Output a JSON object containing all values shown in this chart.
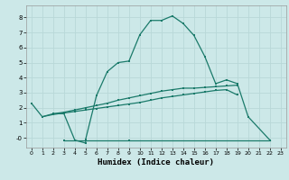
{
  "xlabel": "Humidex (Indice chaleur)",
  "background_color": "#cce8e8",
  "grid_color": "#b8d8d8",
  "line_color": "#1a7a6a",
  "xlim": [
    -0.5,
    23.5
  ],
  "ylim": [
    -0.65,
    8.8
  ],
  "xticks": [
    0,
    1,
    2,
    3,
    4,
    5,
    6,
    7,
    8,
    9,
    10,
    11,
    12,
    13,
    14,
    15,
    16,
    17,
    18,
    19,
    20,
    21,
    22,
    23
  ],
  "yticks": [
    0,
    1,
    2,
    3,
    4,
    5,
    6,
    7,
    8
  ],
  "ytick_labels": [
    "-0",
    "1",
    "2",
    "3",
    "4",
    "5",
    "6",
    "7",
    "8"
  ],
  "lines": [
    {
      "x": [
        0,
        1,
        2,
        3,
        4,
        5,
        5,
        6,
        7,
        8,
        9,
        10,
        11,
        12,
        13,
        14,
        15,
        16,
        17,
        18,
        19,
        20,
        22
      ],
      "y": [
        2.3,
        1.4,
        1.6,
        1.6,
        -0.15,
        -0.35,
        -0.1,
        2.8,
        4.4,
        5.0,
        5.1,
        6.85,
        7.8,
        7.8,
        8.1,
        7.6,
        6.8,
        5.4,
        3.6,
        3.85,
        3.6,
        1.4,
        -0.15
      ]
    },
    {
      "x": [
        3,
        9,
        22
      ],
      "y": [
        -0.15,
        -0.15,
        -0.15
      ]
    },
    {
      "x": [
        1,
        2,
        3,
        4,
        5,
        6,
        7,
        8,
        9,
        10,
        11,
        12,
        13,
        14,
        15,
        16,
        17,
        18,
        19,
        20
      ],
      "y": [
        1.4,
        1.55,
        1.65,
        1.75,
        1.85,
        1.95,
        2.05,
        2.15,
        2.25,
        2.35,
        2.5,
        2.65,
        2.75,
        2.85,
        2.95,
        3.05,
        3.15,
        3.2,
        2.85,
        null
      ]
    },
    {
      "x": [
        2,
        3,
        4,
        5,
        6,
        7,
        8,
        9,
        10,
        11,
        12,
        13,
        14,
        15,
        16,
        17,
        18,
        19,
        20
      ],
      "y": [
        1.6,
        1.7,
        1.85,
        2.0,
        2.15,
        2.3,
        2.5,
        2.65,
        2.8,
        2.95,
        3.1,
        3.2,
        3.3,
        3.3,
        3.35,
        3.4,
        3.45,
        3.5,
        null
      ]
    }
  ]
}
